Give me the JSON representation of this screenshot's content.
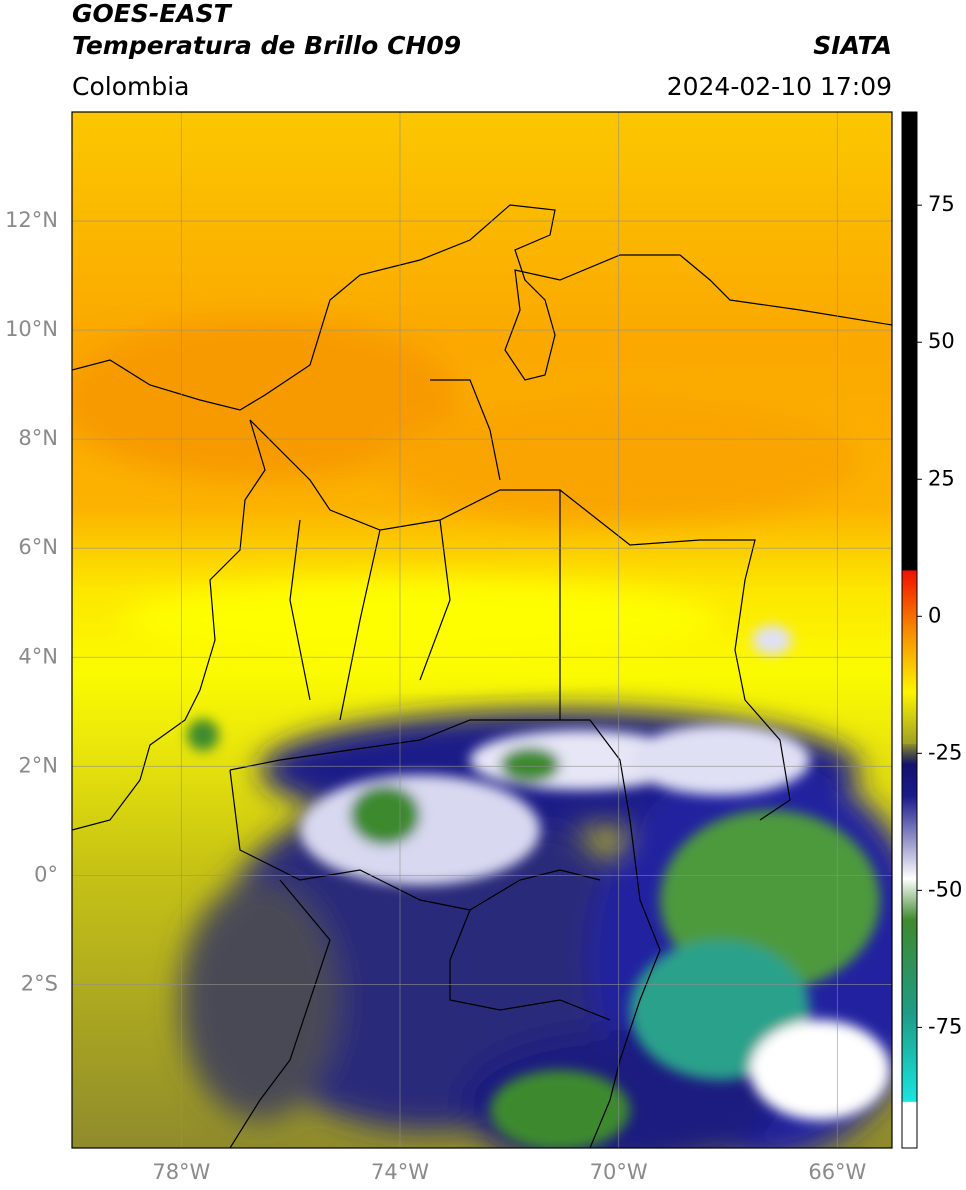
{
  "header": {
    "title": "GOES-EAST",
    "subtitle": "Temperatura de Brillo CH09",
    "region": "Colombia",
    "source": "SIATA",
    "datetime": "2024-02-10 17:09"
  },
  "map": {
    "xlim": [
      -80,
      -65
    ],
    "ylim": [
      -5,
      14
    ],
    "xticks": [
      {
        "value": -78,
        "label": "78°W"
      },
      {
        "value": -74,
        "label": "74°W"
      },
      {
        "value": -70,
        "label": "70°W"
      },
      {
        "value": -66,
        "label": "66°W"
      }
    ],
    "yticks": [
      {
        "value": 12,
        "label": "12°N"
      },
      {
        "value": 10,
        "label": "10°N"
      },
      {
        "value": 8,
        "label": "8°N"
      },
      {
        "value": 6,
        "label": "6°N"
      },
      {
        "value": 4,
        "label": "4°N"
      },
      {
        "value": 2,
        "label": "2°N"
      },
      {
        "value": 0,
        "label": "0°"
      },
      {
        "value": -2,
        "label": "2°S"
      }
    ],
    "grid": true
  },
  "colorbar": {
    "lim": [
      -97,
      92
    ],
    "ticks": [
      75,
      50,
      25,
      0,
      -25,
      -50,
      -75
    ]
  }
}
